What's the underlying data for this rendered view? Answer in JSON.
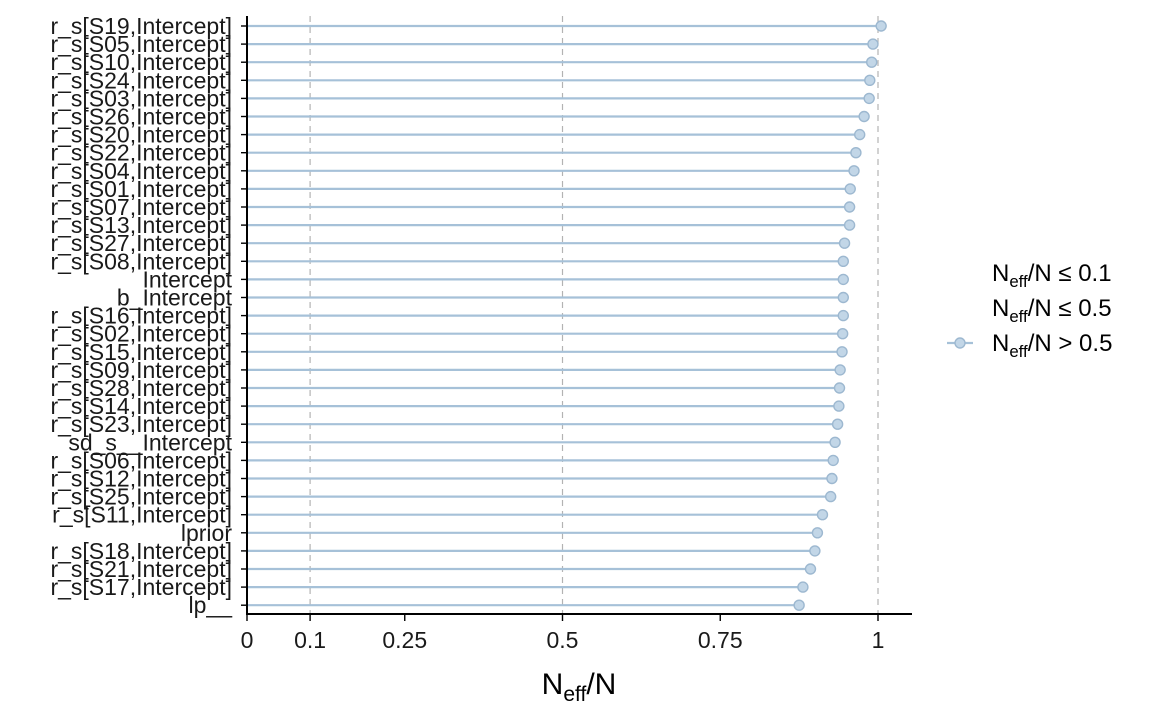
{
  "chart_data": {
    "type": "lollipop",
    "xlabel": "N_eff/N",
    "xlabel_main": "N",
    "xlabel_sub": "eff",
    "xlabel_tail": "/N",
    "xlim": [
      0,
      1.06
    ],
    "x_ticks": [
      0,
      0.1,
      0.25,
      0.5,
      0.75,
      1
    ],
    "x_tick_labels": [
      "0",
      "0.1",
      "0.25",
      "0.5",
      "0.75",
      "1"
    ],
    "reference_lines": [
      0.1,
      0.5,
      1
    ],
    "grid": false,
    "legend_placement": "right",
    "legend": [
      {
        "main": "N",
        "sub": "eff",
        "tail": "/N ≤ 0.1",
        "marker": false
      },
      {
        "main": "N",
        "sub": "eff",
        "tail": "/N ≤ 0.5",
        "marker": false
      },
      {
        "main": "N",
        "sub": "eff",
        "tail": "/N > 0.5",
        "marker": true
      }
    ],
    "colors": {
      "line": "#a6c1d8",
      "point_fill": "#c2d6e7",
      "point_stroke": "#9db8d0",
      "ref_line": "#b3b3b3",
      "axis": "#000000"
    },
    "parameters": [
      "r_s[S19,Intercept]",
      "r_s[S05,Intercept]",
      "r_s[S10,Intercept]",
      "r_s[S24,Intercept]",
      "r_s[S03,Intercept]",
      "r_s[S26,Intercept]",
      "r_s[S20,Intercept]",
      "r_s[S22,Intercept]",
      "r_s[S04,Intercept]",
      "r_s[S01,Intercept]",
      "r_s[S07,Intercept]",
      "r_s[S13,Intercept]",
      "r_s[S27,Intercept]",
      "r_s[S08,Intercept]",
      "Intercept",
      "b_Intercept",
      "r_s[S16,Intercept]",
      "r_s[S02,Intercept]",
      "r_s[S15,Intercept]",
      "r_s[S09,Intercept]",
      "r_s[S28,Intercept]",
      "r_s[S14,Intercept]",
      "r_s[S23,Intercept]",
      "sd_s__Intercept",
      "r_s[S06,Intercept]",
      "r_s[S12,Intercept]",
      "r_s[S25,Intercept]",
      "r_s[S11,Intercept]",
      "lprior",
      "r_s[S18,Intercept]",
      "r_s[S21,Intercept]",
      "r_s[S17,Intercept]",
      "lp__"
    ],
    "values": [
      1.005,
      0.992,
      0.99,
      0.987,
      0.986,
      0.978,
      0.971,
      0.965,
      0.962,
      0.956,
      0.955,
      0.955,
      0.947,
      0.945,
      0.945,
      0.945,
      0.945,
      0.944,
      0.943,
      0.94,
      0.939,
      0.938,
      0.936,
      0.932,
      0.929,
      0.927,
      0.925,
      0.912,
      0.904,
      0.9,
      0.893,
      0.881,
      0.875
    ]
  }
}
